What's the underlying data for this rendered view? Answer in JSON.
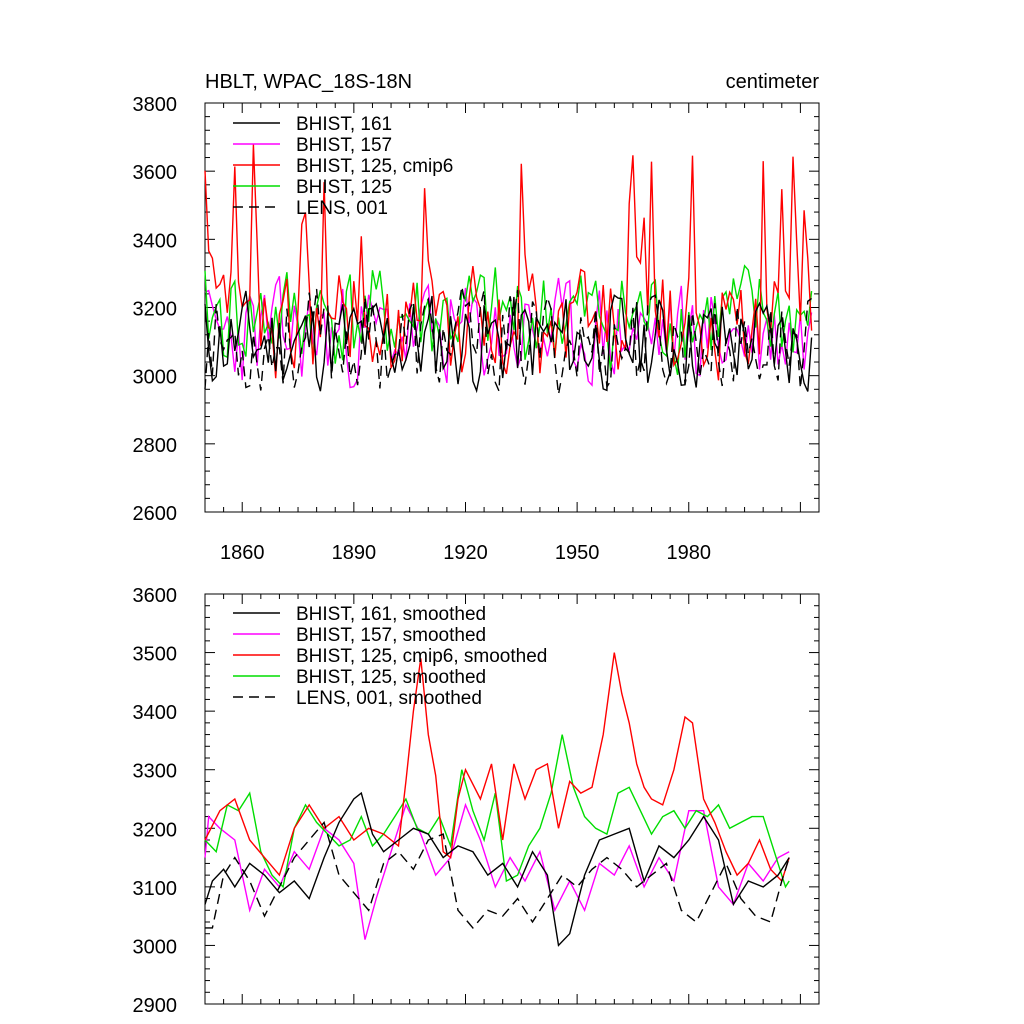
{
  "chart_data": [
    {
      "type": "line",
      "title": "HBLT, WPAC_18S-18N",
      "units": "centimeter",
      "xlim": [
        1850,
        2015
      ],
      "ylim": [
        2600,
        3800
      ],
      "xticks": [
        1860,
        1890,
        1920,
        1950,
        1980
      ],
      "xtick_labels": [
        "1860",
        "1890",
        "1920",
        "1950",
        "1980"
      ],
      "yticks": [
        2600,
        2800,
        3000,
        3200,
        3400,
        3600,
        3800
      ],
      "ytick_labels": [
        "2600",
        "2800",
        "3000",
        "3200",
        "3400",
        "3600",
        "3800"
      ],
      "x_start": 1850,
      "x_step": 1,
      "legend_position": "top-left",
      "series": [
        {
          "name": "BHIST, 161",
          "color": "#000000",
          "dash": "none",
          "seed": 11,
          "base": 3100,
          "amp": 105
        },
        {
          "name": "BHIST, 157",
          "color": "#ff00ff",
          "dash": "none",
          "seed": 23,
          "base": 3120,
          "amp": 110
        },
        {
          "name": "BHIST, 125, cmip6",
          "color": "#ff0000",
          "dash": "none",
          "seed": 37,
          "base": 3150,
          "amp": 120
        },
        {
          "name": "BHIST, 125",
          "color": "#00dd00",
          "dash": "none",
          "seed": 41,
          "base": 3170,
          "amp": 110
        },
        {
          "name": "LENS, 001",
          "color": "#000000",
          "dash": "10,6",
          "seed": 53,
          "base": 3100,
          "amp": 110
        }
      ]
    },
    {
      "type": "line",
      "title": "",
      "xlim": [
        1850,
        2015
      ],
      "ylim": [
        2900,
        3600
      ],
      "xticks": [
        1860,
        1890,
        1920,
        1950,
        1980
      ],
      "yticks": [
        2900,
        3000,
        3100,
        3200,
        3300,
        3400,
        3500,
        3600
      ],
      "ytick_labels": [
        "2900",
        "3000",
        "3100",
        "3200",
        "3300",
        "3400",
        "3500",
        "3600"
      ],
      "legend_position": "top-left",
      "series": [
        {
          "name": "BHIST, 161, smoothed",
          "color": "#000000",
          "dash": "none",
          "x": [
            1850,
            1852,
            1855,
            1858,
            1862,
            1866,
            1870,
            1874,
            1878,
            1882,
            1886,
            1890,
            1892,
            1895,
            1898,
            1902,
            1906,
            1910,
            1914,
            1918,
            1922,
            1926,
            1930,
            1934,
            1938,
            1942,
            1945,
            1948,
            1952,
            1956,
            1960,
            1964,
            1968,
            1972,
            1976,
            1980,
            1984,
            1988,
            1992,
            1996,
            2000,
            2004,
            2007
          ],
          "y": [
            3070,
            3110,
            3130,
            3100,
            3140,
            3120,
            3090,
            3110,
            3080,
            3150,
            3210,
            3250,
            3260,
            3190,
            3160,
            3180,
            3200,
            3190,
            3150,
            3170,
            3160,
            3120,
            3140,
            3100,
            3160,
            3120,
            3000,
            3020,
            3120,
            3180,
            3190,
            3200,
            3110,
            3170,
            3150,
            3180,
            3220,
            3180,
            3070,
            3110,
            3100,
            3120,
            3150
          ]
        },
        {
          "name": "BHIST, 157, smoothed",
          "color": "#ff00ff",
          "dash": "none",
          "x": [
            1850,
            1851,
            1854,
            1858,
            1862,
            1866,
            1870,
            1874,
            1878,
            1882,
            1886,
            1890,
            1893,
            1896,
            1900,
            1904,
            1908,
            1912,
            1916,
            1920,
            1924,
            1928,
            1932,
            1936,
            1940,
            1944,
            1948,
            1952,
            1956,
            1960,
            1964,
            1968,
            1972,
            1976,
            1980,
            1984,
            1988,
            1992,
            1996,
            2000,
            2004,
            2007
          ],
          "y": [
            3150,
            3220,
            3200,
            3180,
            3060,
            3130,
            3100,
            3160,
            3130,
            3200,
            3180,
            3140,
            3010,
            3080,
            3160,
            3240,
            3190,
            3120,
            3150,
            3240,
            3180,
            3100,
            3150,
            3110,
            3160,
            3060,
            3110,
            3060,
            3140,
            3120,
            3170,
            3100,
            3150,
            3110,
            3230,
            3230,
            3100,
            3070,
            3140,
            3110,
            3150,
            3160
          ]
        },
        {
          "name": "BHIST, 125, cmip6, smoothed",
          "color": "#ff0000",
          "dash": "none",
          "x": [
            1850,
            1854,
            1858,
            1862,
            1866,
            1870,
            1874,
            1878,
            1882,
            1886,
            1890,
            1894,
            1898,
            1902,
            1904,
            1906,
            1908,
            1910,
            1912,
            1914,
            1916,
            1918,
            1920,
            1924,
            1927,
            1930,
            1933,
            1936,
            1939,
            1942,
            1945,
            1948,
            1951,
            1954,
            1957,
            1960,
            1962,
            1964,
            1966,
            1968,
            1970,
            1973,
            1976,
            1979,
            1981,
            1984,
            1987,
            1990,
            1993,
            1996,
            1999,
            2002,
            2005,
            2007
          ],
          "y": [
            3180,
            3230,
            3250,
            3180,
            3150,
            3120,
            3200,
            3240,
            3200,
            3220,
            3180,
            3200,
            3190,
            3170,
            3280,
            3400,
            3490,
            3360,
            3290,
            3160,
            3150,
            3250,
            3300,
            3250,
            3310,
            3180,
            3310,
            3250,
            3300,
            3310,
            3200,
            3280,
            3260,
            3270,
            3360,
            3500,
            3430,
            3380,
            3310,
            3270,
            3250,
            3240,
            3300,
            3390,
            3380,
            3250,
            3210,
            3160,
            3120,
            3140,
            3180,
            3130,
            3110,
            3150
          ]
        },
        {
          "name": "BHIST, 125, smoothed",
          "color": "#00dd00",
          "dash": "none",
          "x": [
            1850,
            1853,
            1856,
            1859,
            1862,
            1865,
            1868,
            1871,
            1874,
            1877,
            1880,
            1883,
            1886,
            1889,
            1892,
            1895,
            1898,
            1901,
            1904,
            1907,
            1910,
            1913,
            1916,
            1919,
            1922,
            1925,
            1928,
            1931,
            1934,
            1937,
            1940,
            1943,
            1946,
            1949,
            1952,
            1955,
            1958,
            1961,
            1964,
            1967,
            1970,
            1973,
            1976,
            1979,
            1982,
            1985,
            1988,
            1991,
            1994,
            1997,
            2000,
            2003,
            2006,
            2007
          ],
          "y": [
            3180,
            3160,
            3240,
            3230,
            3260,
            3160,
            3120,
            3100,
            3200,
            3240,
            3210,
            3190,
            3170,
            3180,
            3220,
            3170,
            3190,
            3220,
            3250,
            3200,
            3190,
            3220,
            3170,
            3300,
            3230,
            3180,
            3260,
            3110,
            3120,
            3170,
            3200,
            3260,
            3360,
            3270,
            3220,
            3200,
            3190,
            3260,
            3270,
            3230,
            3190,
            3220,
            3230,
            3200,
            3230,
            3220,
            3240,
            3200,
            3210,
            3220,
            3220,
            3160,
            3100,
            3110
          ]
        },
        {
          "name": "LENS, 001, smoothed",
          "color": "#000000",
          "dash": "10,6",
          "x": [
            1850,
            1852,
            1855,
            1858,
            1862,
            1866,
            1870,
            1874,
            1878,
            1882,
            1886,
            1890,
            1894,
            1898,
            1902,
            1906,
            1910,
            1914,
            1918,
            1922,
            1926,
            1930,
            1934,
            1938,
            1942,
            1946,
            1950,
            1954,
            1958,
            1962,
            1966,
            1970,
            1974,
            1978,
            1982,
            1986,
            1990,
            1994,
            1998,
            2002,
            2005,
            2007
          ],
          "y": [
            3030,
            3030,
            3120,
            3150,
            3110,
            3050,
            3100,
            3150,
            3180,
            3210,
            3120,
            3090,
            3060,
            3140,
            3160,
            3130,
            3180,
            3190,
            3060,
            3030,
            3060,
            3050,
            3080,
            3040,
            3080,
            3120,
            3100,
            3130,
            3150,
            3130,
            3100,
            3120,
            3140,
            3060,
            3040,
            3090,
            3140,
            3080,
            3050,
            3040,
            3110,
            3150
          ]
        }
      ]
    }
  ]
}
